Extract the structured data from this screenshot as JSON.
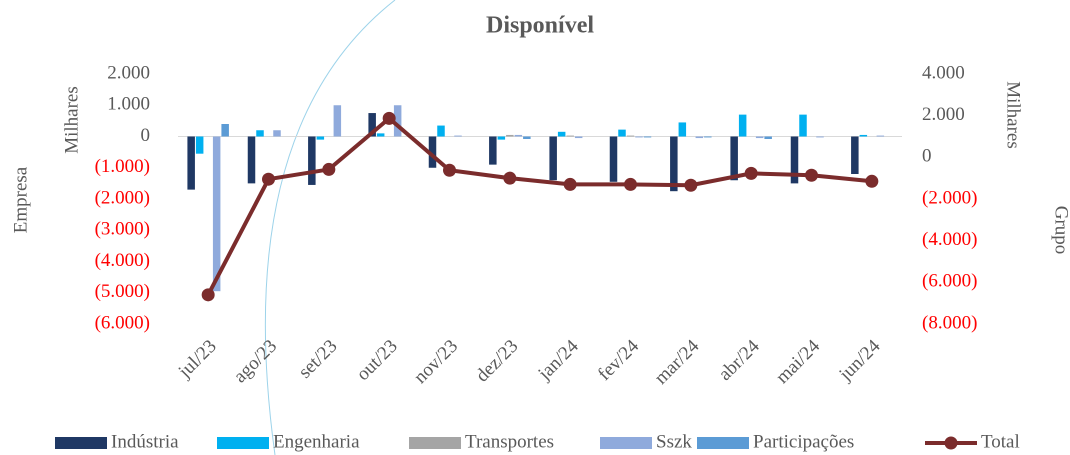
{
  "chart_data": {
    "type": "bar",
    "title": "Disponível",
    "y_label": "Empresa",
    "y_unit": "Milhares",
    "y2_label": "Grupo",
    "y2_unit": "Milhares",
    "negative_tick_color": "#ff0000",
    "categories": [
      "jul/23",
      "ago/23",
      "set/23",
      "out/23",
      "nov/23",
      "dez/23",
      "jan/24",
      "fev/24",
      "mar/24",
      "abr/24",
      "mai/24",
      "jun/24"
    ],
    "ylim": [
      -6000,
      2000
    ],
    "yticks": [
      {
        "value": 2000,
        "label": "2.000"
      },
      {
        "value": 1000,
        "label": "1.000"
      },
      0,
      {
        "value": -1000,
        "label": "(1.000)"
      },
      {
        "value": -2000,
        "label": "(2.000)"
      },
      {
        "value": -3000,
        "label": "(3.000)"
      },
      {
        "value": -4000,
        "label": "(4.000)"
      },
      {
        "value": -5000,
        "label": "(5.000)"
      },
      {
        "value": -6000,
        "label": "(6.000)"
      }
    ],
    "y2lim": [
      -8000,
      4000
    ],
    "y2ticks": [
      {
        "value": 4000,
        "label": "4.000"
      },
      {
        "value": 2000,
        "label": "2.000"
      },
      0,
      {
        "value": -2000,
        "label": "(2.000)"
      },
      {
        "value": -4000,
        "label": "(4.000)"
      },
      {
        "value": -6000,
        "label": "(6.000)"
      },
      {
        "value": -8000,
        "label": "(8.000)"
      }
    ],
    "series": [
      {
        "name": "Indústria",
        "color": "#1f3864",
        "values": [
          -1700,
          -1500,
          -1550,
          750,
          -1000,
          -900,
          -1400,
          -1450,
          -1750,
          -1400,
          -1500,
          -1200
        ]
      },
      {
        "name": "Engenharia",
        "color": "#00b0f0",
        "values": [
          -550,
          200,
          -100,
          100,
          350,
          -100,
          150,
          220,
          450,
          700,
          700,
          50
        ]
      },
      {
        "name": "Transportes",
        "color": "#a5a5a5",
        "values": [
          0,
          0,
          0,
          0,
          0,
          50,
          30,
          30,
          0,
          0,
          0,
          0
        ]
      },
      {
        "name": "Sszk",
        "color": "#8faadc",
        "values": [
          -4950,
          200,
          1000,
          1000,
          30,
          50,
          -50,
          -30,
          -50,
          -50,
          -30,
          30
        ]
      },
      {
        "name": "Participações",
        "color": "#5b9bd5",
        "values": [
          400,
          0,
          0,
          0,
          0,
          -80,
          0,
          -30,
          -30,
          -80,
          0,
          0
        ]
      },
      {
        "name": "Total",
        "color": "#7b2c2c",
        "type": "line",
        "axis": "y2",
        "values": [
          -6600,
          -1050,
          -580,
          1870,
          -620,
          -1000,
          -1300,
          -1300,
          -1340,
          -770,
          -860,
          -1150
        ]
      }
    ]
  }
}
